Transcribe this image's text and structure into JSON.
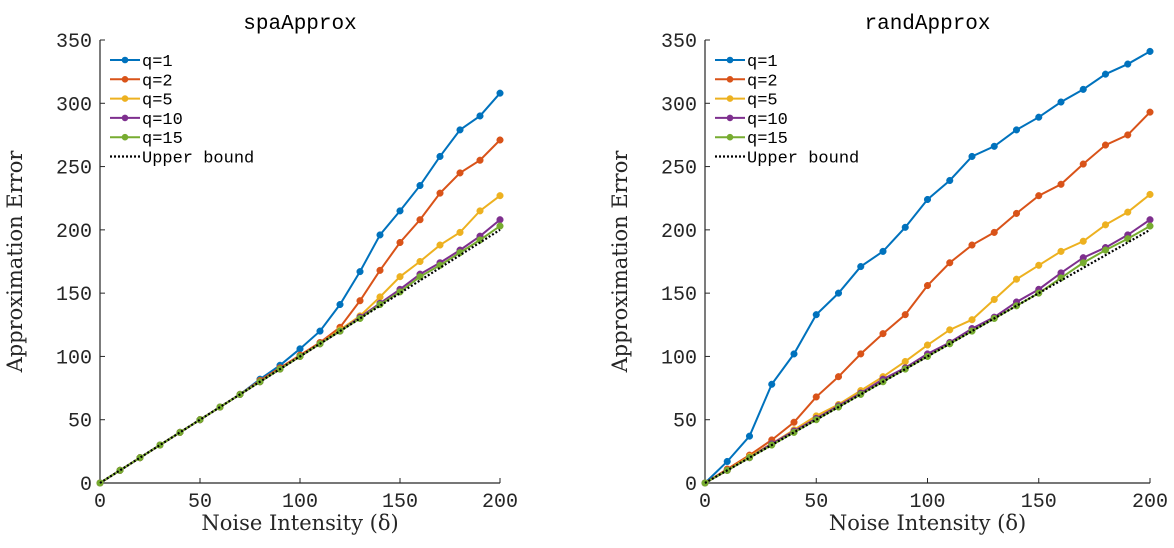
{
  "chart_data": [
    {
      "type": "line",
      "title": "spaApprox",
      "xlabel": "Noise Intensity (δ)",
      "ylabel": "Approximation Error",
      "xlim": [
        0,
        200
      ],
      "ylim": [
        0,
        350
      ],
      "xticks": [
        0,
        50,
        100,
        150,
        200
      ],
      "yticks": [
        0,
        50,
        100,
        150,
        200,
        250,
        300,
        350
      ],
      "grid": false,
      "legend_position": "top-left",
      "x": [
        0,
        10,
        20,
        30,
        40,
        50,
        60,
        70,
        80,
        90,
        100,
        110,
        120,
        130,
        140,
        150,
        160,
        170,
        180,
        190,
        200
      ],
      "series": [
        {
          "name": "q=1",
          "color": "#0072BD",
          "marker": "circle",
          "values": [
            0,
            10,
            20,
            30,
            40,
            50,
            60,
            70,
            82,
            93,
            106,
            120,
            141,
            167,
            196,
            215,
            235,
            258,
            279,
            290,
            308
          ]
        },
        {
          "name": "q=2",
          "color": "#D95319",
          "marker": "circle",
          "values": [
            0,
            10,
            20,
            30,
            40,
            50,
            60,
            70,
            81,
            91,
            101,
            111,
            123,
            144,
            168,
            190,
            208,
            229,
            245,
            255,
            271
          ]
        },
        {
          "name": "q=5",
          "color": "#EDB120",
          "marker": "circle",
          "values": [
            0,
            10,
            20,
            30,
            40,
            50,
            60,
            70,
            80,
            90,
            100,
            110,
            121,
            132,
            147,
            163,
            175,
            188,
            198,
            215,
            227
          ]
        },
        {
          "name": "q=10",
          "color": "#7E2F8E",
          "marker": "circle",
          "values": [
            0,
            10,
            20,
            30,
            40,
            50,
            60,
            70,
            80,
            90,
            100,
            110,
            120,
            131,
            142,
            153,
            165,
            174,
            184,
            195,
            208
          ]
        },
        {
          "name": "q=15",
          "color": "#77AC30",
          "marker": "circle",
          "values": [
            0,
            10,
            20,
            30,
            40,
            50,
            60,
            70,
            80,
            90,
            100,
            110,
            120,
            130,
            141,
            151,
            163,
            172,
            182,
            192,
            203
          ]
        },
        {
          "name": "Upper bound",
          "color": "#000000",
          "marker": "none",
          "dash": "dotted",
          "values": [
            0,
            10,
            20,
            30,
            40,
            50,
            60,
            70,
            80,
            90,
            100,
            110,
            120,
            130,
            140,
            150,
            160,
            170,
            180,
            190,
            200
          ]
        }
      ]
    },
    {
      "type": "line",
      "title": "randApprox",
      "xlabel": "Noise Intensity (δ)",
      "ylabel": "Approximation Error",
      "xlim": [
        0,
        200
      ],
      "ylim": [
        0,
        350
      ],
      "xticks": [
        0,
        50,
        100,
        150,
        200
      ],
      "yticks": [
        0,
        50,
        100,
        150,
        200,
        250,
        300,
        350
      ],
      "grid": false,
      "legend_position": "top-left",
      "x": [
        0,
        10,
        20,
        30,
        40,
        50,
        60,
        70,
        80,
        90,
        100,
        110,
        120,
        130,
        140,
        150,
        160,
        170,
        180,
        190,
        200
      ],
      "series": [
        {
          "name": "q=1",
          "color": "#0072BD",
          "marker": "circle",
          "values": [
            0,
            17,
            37,
            78,
            102,
            133,
            150,
            171,
            183,
            202,
            224,
            239,
            258,
            266,
            279,
            289,
            301,
            311,
            323,
            331,
            341
          ]
        },
        {
          "name": "q=2",
          "color": "#D95319",
          "marker": "circle",
          "values": [
            0,
            11,
            22,
            34,
            48,
            68,
            84,
            102,
            118,
            133,
            156,
            174,
            188,
            198,
            213,
            227,
            236,
            252,
            267,
            275,
            293
          ]
        },
        {
          "name": "q=5",
          "color": "#EDB120",
          "marker": "circle",
          "values": [
            0,
            10,
            21,
            31,
            42,
            53,
            62,
            73,
            84,
            96,
            109,
            121,
            129,
            145,
            161,
            172,
            183,
            191,
            204,
            214,
            228
          ]
        },
        {
          "name": "q=10",
          "color": "#7E2F8E",
          "marker": "circle",
          "values": [
            0,
            10,
            20,
            31,
            41,
            51,
            61,
            71,
            82,
            91,
            102,
            111,
            122,
            131,
            143,
            153,
            166,
            178,
            186,
            196,
            208
          ]
        },
        {
          "name": "q=15",
          "color": "#77AC30",
          "marker": "circle",
          "values": [
            0,
            10,
            20,
            30,
            40,
            50,
            60,
            70,
            80,
            90,
            100,
            110,
            120,
            130,
            140,
            150,
            162,
            174,
            184,
            193,
            203
          ]
        },
        {
          "name": "Upper bound",
          "color": "#000000",
          "marker": "none",
          "dash": "dotted",
          "values": [
            0,
            10,
            20,
            30,
            40,
            50,
            60,
            70,
            80,
            90,
            100,
            110,
            120,
            130,
            140,
            150,
            160,
            170,
            180,
            190,
            200
          ]
        }
      ]
    }
  ]
}
